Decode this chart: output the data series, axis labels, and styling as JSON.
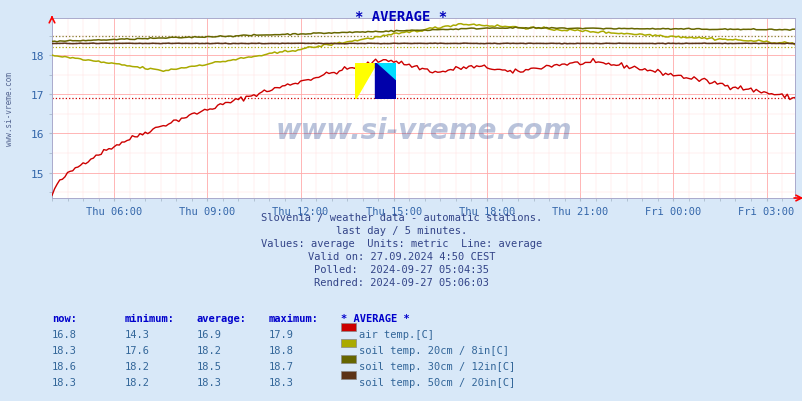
{
  "title": "* AVERAGE *",
  "title_color": "#0000bb",
  "background_color": "#d8e8f8",
  "plot_bg_color": "#ffffff",
  "grid_color_major": "#ffaaaa",
  "grid_color_minor": "#ffdddd",
  "x_label_color": "#3366aa",
  "y_label_color": "#3366aa",
  "watermark_text": "www.si-vreme.com",
  "watermark_color": "#1a3a8a",
  "subtitle_lines": [
    "Slovenia / weather data - automatic stations.",
    "last day / 5 minutes.",
    "Values: average  Units: metric  Line: average",
    "Valid on: 27.09.2024 4:50 CEST",
    "Polled:  2024-09-27 05:04:35",
    "Rendred: 2024-09-27 05:06:03"
  ],
  "ylim": [
    14.35,
    18.95
  ],
  "yticks": [
    15,
    16,
    17,
    18
  ],
  "x_tick_labels": [
    "Thu 06:00",
    "Thu 09:00",
    "Thu 12:00",
    "Thu 15:00",
    "Thu 18:00",
    "Thu 21:00",
    "Fri 00:00",
    "Fri 03:00"
  ],
  "n_points": 288,
  "legend": [
    {
      "label": "air temp.[C]",
      "color": "#cc0000",
      "now": "16.8",
      "min": "14.3",
      "avg": "16.9",
      "max": "17.9"
    },
    {
      "label": "soil temp. 20cm / 8in[C]",
      "color": "#aaaa00",
      "now": "18.3",
      "min": "17.6",
      "avg": "18.2",
      "max": "18.8"
    },
    {
      "label": "soil temp. 30cm / 12in[C]",
      "color": "#666600",
      "now": "18.6",
      "min": "18.2",
      "avg": "18.5",
      "max": "18.7"
    },
    {
      "label": "soil temp. 50cm / 20in[C]",
      "color": "#5c3317",
      "now": "18.3",
      "min": "18.2",
      "avg": "18.3",
      "max": "18.3"
    }
  ],
  "avg_dotted": [
    {
      "val": 16.9,
      "color": "#cc0000"
    },
    {
      "val": 18.2,
      "color": "#aaaa00"
    },
    {
      "val": 18.5,
      "color": "#666600"
    },
    {
      "val": 18.3,
      "color": "#5c3317"
    }
  ]
}
